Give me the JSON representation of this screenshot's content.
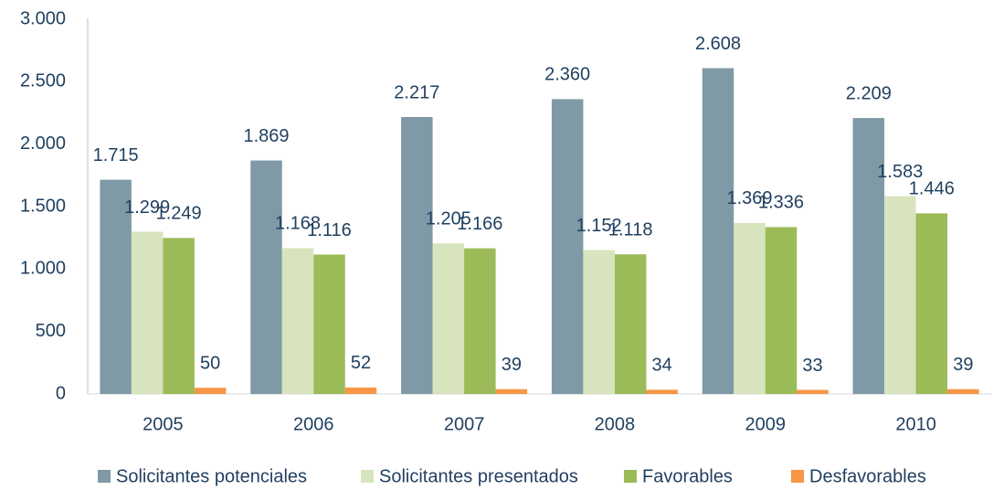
{
  "chart_data": {
    "type": "bar",
    "categories": [
      "2005",
      "2006",
      "2007",
      "2008",
      "2009",
      "2010"
    ],
    "series": [
      {
        "name": "Solicitantes potenciales",
        "color": "#7f9aa6",
        "values": [
          1715,
          1869,
          2217,
          2360,
          2608,
          2209
        ],
        "value_labels": [
          "1.715",
          "1.869",
          "2.217",
          "2.360",
          "2.608",
          "2.209"
        ]
      },
      {
        "name": "Solicitantes presentados",
        "color": "#d7e4bd",
        "values": [
          1299,
          1168,
          1205,
          1152,
          1369,
          1583
        ],
        "value_labels": [
          "1.299",
          "1.168",
          "1.205",
          "1.152",
          "1.369",
          "1.583"
        ]
      },
      {
        "name": "Favorables",
        "color": "#9bbb59",
        "values": [
          1249,
          1116,
          1166,
          1118,
          1336,
          1446
        ],
        "value_labels": [
          "1.249",
          "1.116",
          "1.166",
          "1.118",
          "1.336",
          "1.446"
        ]
      },
      {
        "name": "Desfavorables",
        "color": "#f79646",
        "values": [
          50,
          52,
          39,
          34,
          33,
          39
        ]
      }
    ],
    "ylim": [
      0,
      3000
    ],
    "yticks": [
      0,
      500,
      {
        "value": 1000,
        "label": "1.000"
      },
      {
        "value": 1500,
        "label": "1.500"
      },
      {
        "value": 2000,
        "label": "2.000"
      },
      {
        "value": 2500,
        "label": "2.500"
      },
      {
        "value": 3000,
        "label": "3.000"
      }
    ],
    "legend": "bottom"
  }
}
